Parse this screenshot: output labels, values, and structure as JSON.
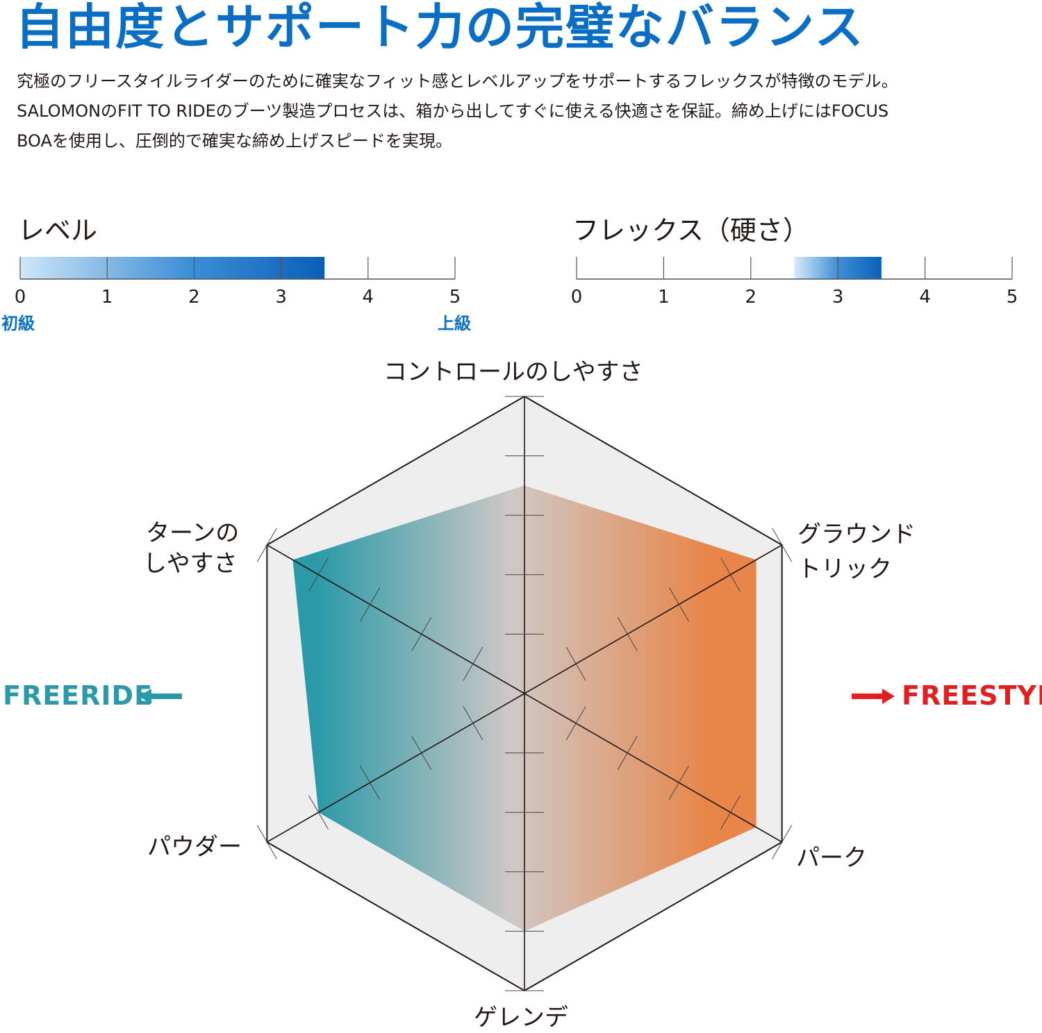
{
  "headline": "自由度とサポート力の完璧なバランス",
  "description": {
    "line1": "究極のフリースタイルライダーのために確実なフィット感とレベルアップをサポートするフレックスが特徴のモデル。",
    "line2": "SALOMONのFIT TO RIDEのブーツ製造プロセスは、箱から出してすぐに使える快適さを保証。締め上げにはFOCUS",
    "line3": "BOAを使用し、圧倒的で確実な締め上げスピードを実現。"
  },
  "colors": {
    "brand_blue": "#0a6fc4",
    "freeride_teal": "#2b9aa8",
    "freestyle_red": "#e02020",
    "freestyle_orange": "#e8874a",
    "hex_background": "#eeeeee"
  },
  "chart_data": [
    {
      "type": "bar",
      "title": "レベル",
      "ticks": [
        "0",
        "1",
        "2",
        "3",
        "4",
        "5"
      ],
      "xlim": [
        0,
        5
      ],
      "range": [
        0,
        3.5
      ],
      "low_label": "初級",
      "high_label": "上級"
    },
    {
      "type": "bar",
      "title": "フレックス（硬さ）",
      "ticks": [
        "0",
        "1",
        "2",
        "3",
        "4",
        "5"
      ],
      "xlim": [
        0,
        5
      ],
      "range": [
        2.5,
        3.5
      ]
    },
    {
      "type": "radar",
      "axes": [
        {
          "label": "コントロールのしやすさ",
          "value": 3.5
        },
        {
          "label": "グラウンド\nトリック",
          "value": 4.5
        },
        {
          "label": "パーク",
          "value": 4.5
        },
        {
          "label": "ゲレンデ",
          "value": 4
        },
        {
          "label": "パウダー",
          "value": 4
        },
        {
          "label": "ターンの\nしやすさ",
          "value": 4.5
        }
      ],
      "axes_text": {
        "top": "コントロールのしやすさ",
        "top_right_1": "グラウンド",
        "top_right_2": "トリック",
        "bottom_right": "パーク",
        "bottom": "ゲレンデ",
        "bottom_left": "パウダー",
        "top_left_1": "ターンの",
        "top_left_2": "しやすさ"
      },
      "max": 5,
      "left_label": "FREERIDE",
      "right_label": "FREESTYLE"
    }
  ]
}
